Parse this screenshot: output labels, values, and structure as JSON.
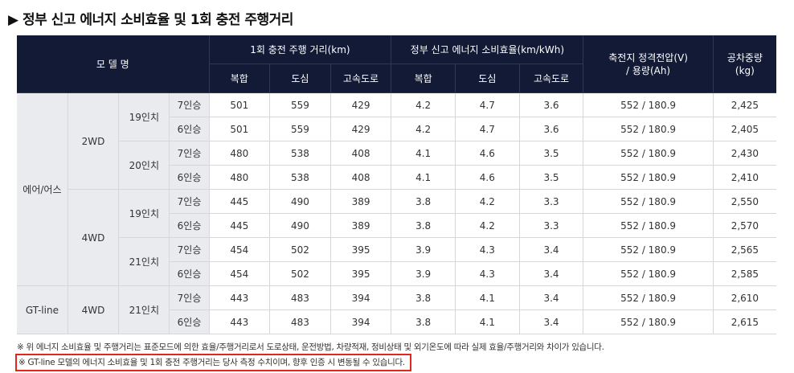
{
  "title": "▶ 정부 신고 에너지 소비효율 및 1회 충전 주행거리",
  "header": {
    "model": "모 델 명",
    "range_group": "1회 충전 주행 거리(km)",
    "efficiency_group": "정부 신고 에너지 소비효율(km/kWh)",
    "battery": "축전지 정격전압(V) / 용량(Ah)",
    "weight": "공차중량 (kg)",
    "combined": "복합",
    "city": "도심",
    "highway": "고속도로"
  },
  "groups": [
    "에어/어스",
    "GT-line"
  ],
  "drives": [
    "2WD",
    "4WD",
    "4WD"
  ],
  "wheels": [
    "19인치",
    "20인치",
    "19인치",
    "21인치",
    "21인치"
  ],
  "rows": [
    {
      "seats": "7인승",
      "range_combined": "501",
      "range_city": "559",
      "range_highway": "429",
      "eff_combined": "4.2",
      "eff_city": "4.7",
      "eff_highway": "3.6",
      "battery": "552 / 180.9",
      "weight": "2,425"
    },
    {
      "seats": "6인승",
      "range_combined": "501",
      "range_city": "559",
      "range_highway": "429",
      "eff_combined": "4.2",
      "eff_city": "4.7",
      "eff_highway": "3.6",
      "battery": "552 / 180.9",
      "weight": "2,405"
    },
    {
      "seats": "7인승",
      "range_combined": "480",
      "range_city": "538",
      "range_highway": "408",
      "eff_combined": "4.1",
      "eff_city": "4.6",
      "eff_highway": "3.5",
      "battery": "552 / 180.9",
      "weight": "2,430"
    },
    {
      "seats": "6인승",
      "range_combined": "480",
      "range_city": "538",
      "range_highway": "408",
      "eff_combined": "4.1",
      "eff_city": "4.6",
      "eff_highway": "3.5",
      "battery": "552 / 180.9",
      "weight": "2,410"
    },
    {
      "seats": "7인승",
      "range_combined": "445",
      "range_city": "490",
      "range_highway": "389",
      "eff_combined": "3.8",
      "eff_city": "4.2",
      "eff_highway": "3.3",
      "battery": "552 / 180.9",
      "weight": "2,550"
    },
    {
      "seats": "6인승",
      "range_combined": "445",
      "range_city": "490",
      "range_highway": "389",
      "eff_combined": "3.8",
      "eff_city": "4.2",
      "eff_highway": "3.3",
      "battery": "552 / 180.9",
      "weight": "2,570"
    },
    {
      "seats": "7인승",
      "range_combined": "454",
      "range_city": "502",
      "range_highway": "395",
      "eff_combined": "3.9",
      "eff_city": "4.3",
      "eff_highway": "3.4",
      "battery": "552 / 180.9",
      "weight": "2,565"
    },
    {
      "seats": "6인승",
      "range_combined": "454",
      "range_city": "502",
      "range_highway": "395",
      "eff_combined": "3.9",
      "eff_city": "4.3",
      "eff_highway": "3.4",
      "battery": "552 / 180.9",
      "weight": "2,585"
    },
    {
      "seats": "7인승",
      "range_combined": "443",
      "range_city": "483",
      "range_highway": "394",
      "eff_combined": "3.8",
      "eff_city": "4.1",
      "eff_highway": "3.4",
      "battery": "552 / 180.9",
      "weight": "2,610"
    },
    {
      "seats": "6인승",
      "range_combined": "443",
      "range_city": "483",
      "range_highway": "394",
      "eff_combined": "3.8",
      "eff_city": "4.1",
      "eff_highway": "3.4",
      "battery": "552 / 180.9",
      "weight": "2,615"
    }
  ],
  "notes": [
    "※ 위 에너지 소비효율 및 주행거리는 표준모드에 의한 효율/주행거리로서 도로상태, 운전방법, 차량적재, 정비상태 및 외기온도에 따라 실제 효율/주행거리와 차이가 있습니다.",
    "※ GT-line 모델의 에너지 소비효율 및 1회 충전 주행거리는 당사 측정 수치이며, 향후 인증 시 변동될 수 있습니다."
  ],
  "colors": {
    "header_bg": "#121a35",
    "label_bg": "#e9ebee",
    "highlight_border": "#e0271c"
  }
}
